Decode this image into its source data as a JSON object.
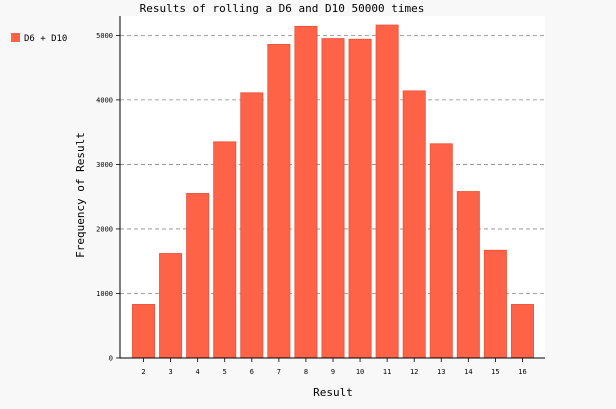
{
  "chart_data": {
    "type": "bar",
    "title": "Results of rolling a D6 and D10 50000 times",
    "xlabel": "Result",
    "ylabel": "Frequency of Result",
    "categories": [
      "2",
      "3",
      "4",
      "5",
      "6",
      "7",
      "8",
      "9",
      "10",
      "11",
      "12",
      "13",
      "14",
      "15",
      "16"
    ],
    "series": [
      {
        "name": "D6 + D10",
        "values": [
          830,
          1620,
          2550,
          3350,
          4110,
          4860,
          5140,
          4950,
          4940,
          5160,
          4140,
          3320,
          2580,
          1670,
          830
        ]
      }
    ],
    "ylim": [
      0,
      5300
    ],
    "yticks": [
      0,
      1000,
      2000,
      3000,
      4000,
      5000
    ],
    "grid": "horizontal-dashed",
    "legend_position": "top-left",
    "bar_color": "#ff6347",
    "bar_stroke": "#e8523a"
  }
}
